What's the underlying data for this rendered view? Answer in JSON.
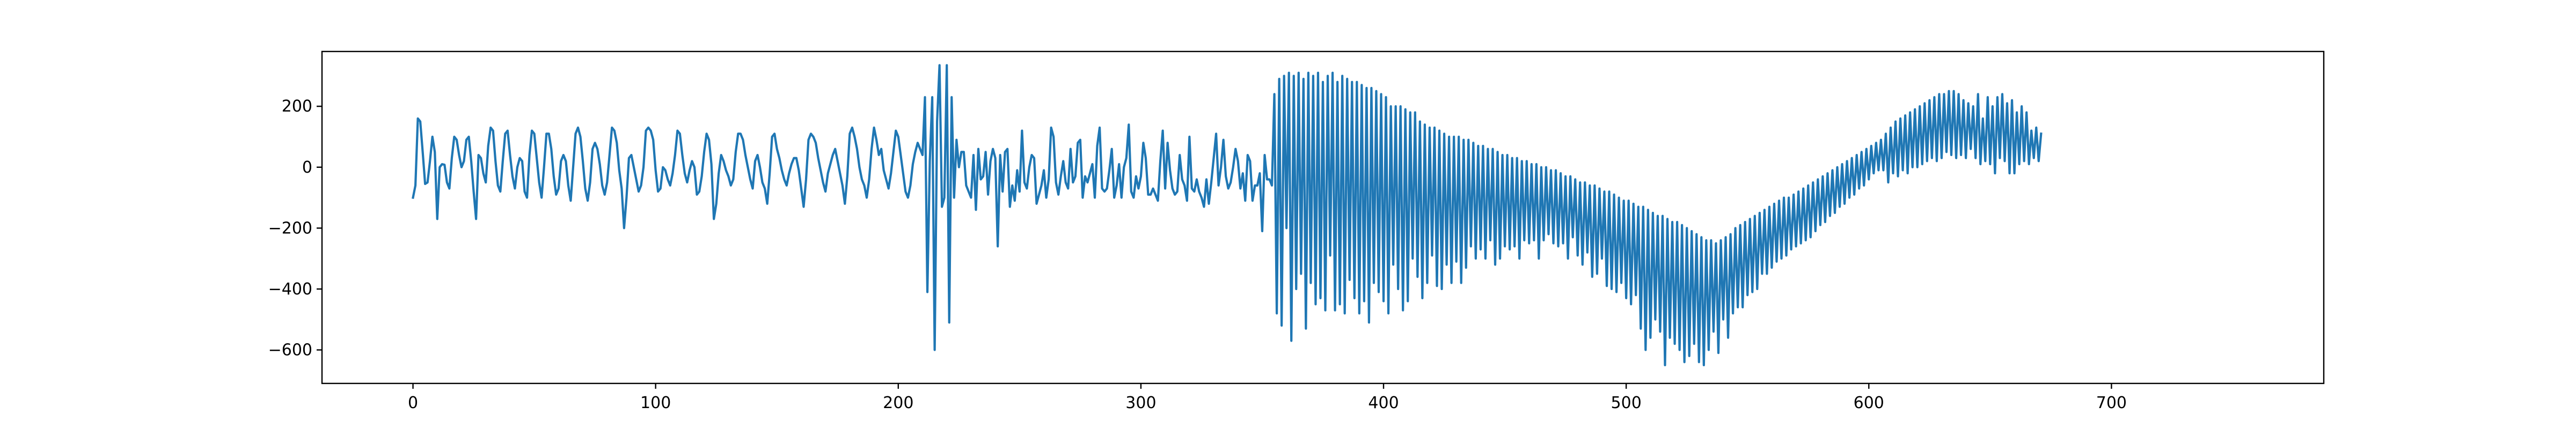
{
  "chart_data": {
    "type": "line",
    "title": "",
    "xlabel": "",
    "ylabel": "",
    "xlim": [
      -37.5,
      787.5
    ],
    "ylim": [
      -710,
      380
    ],
    "xticks": [
      0,
      100,
      200,
      300,
      400,
      500,
      600,
      700
    ],
    "yticks": [
      -600,
      -400,
      -200,
      0,
      200
    ],
    "xtick_labels": [
      "0",
      "100",
      "200",
      "300",
      "400",
      "500",
      "600",
      "700"
    ],
    "ytick_labels": [
      "−600",
      "−400",
      "−200",
      "0",
      "200"
    ],
    "grid": false,
    "legend": "none",
    "series": [
      {
        "color": "#1f77b4",
        "x_start": 0,
        "x_step": 1,
        "values": [
          -100,
          -60,
          160,
          150,
          50,
          -55,
          -50,
          20,
          100,
          50,
          -170,
          0,
          10,
          8,
          -50,
          -70,
          30,
          100,
          90,
          40,
          0,
          20,
          90,
          100,
          20,
          -80,
          -170,
          40,
          30,
          -20,
          -50,
          70,
          130,
          120,
          20,
          -60,
          -80,
          20,
          110,
          120,
          40,
          -30,
          -70,
          0,
          30,
          20,
          -80,
          -100,
          40,
          120,
          110,
          30,
          -50,
          -100,
          0,
          110,
          110,
          60,
          -30,
          -90,
          -70,
          20,
          40,
          20,
          -60,
          -110,
          0,
          110,
          130,
          100,
          20,
          -70,
          -110,
          -50,
          60,
          80,
          60,
          10,
          -60,
          -90,
          -50,
          40,
          130,
          120,
          80,
          -10,
          -70,
          -200,
          -100,
          30,
          40,
          0,
          -40,
          -80,
          -60,
          0,
          120,
          130,
          120,
          90,
          -10,
          -80,
          -70,
          0,
          -10,
          -40,
          -60,
          -20,
          40,
          120,
          110,
          40,
          -20,
          -50,
          -10,
          20,
          0,
          -90,
          -80,
          -30,
          50,
          110,
          90,
          10,
          -170,
          -120,
          -20,
          40,
          20,
          -10,
          -30,
          -60,
          -40,
          50,
          110,
          110,
          90,
          40,
          0,
          -40,
          -70,
          20,
          40,
          0,
          -50,
          -70,
          -120,
          -20,
          100,
          110,
          60,
          30,
          -10,
          -40,
          -60,
          -20,
          10,
          30,
          30,
          -10,
          -70,
          -130,
          -40,
          90,
          110,
          100,
          80,
          30,
          -10,
          -50,
          -80,
          -20,
          10,
          40,
          60,
          20,
          -20,
          -60,
          -120,
          -30,
          110,
          130,
          100,
          60,
          0,
          -40,
          -60,
          -100,
          -40,
          60,
          130,
          90,
          40,
          60,
          -10,
          -40,
          -70,
          -20,
          50,
          120,
          100,
          40,
          -20,
          -80,
          -100,
          -60,
          10,
          50,
          80,
          60,
          40,
          230,
          -410,
          20,
          230,
          -600,
          150,
          335,
          -130,
          -100,
          335,
          -510,
          230,
          -100,
          90,
          0,
          50,
          50,
          -60,
          -80,
          -100,
          40,
          -140,
          60,
          -40,
          -30,
          50,
          -90,
          20,
          60,
          30,
          -260,
          40,
          -80,
          50,
          60,
          -130,
          -60,
          -110,
          -10,
          -80,
          120,
          -50,
          -70,
          0,
          40,
          30,
          -120,
          -90,
          -60,
          -10,
          -100,
          -40,
          130,
          100,
          -50,
          -90,
          -30,
          20,
          -50,
          -70,
          60,
          -50,
          -30,
          80,
          90,
          -100,
          -30,
          -50,
          -20,
          10,
          -100,
          70,
          130,
          -70,
          -80,
          -70,
          -10,
          60,
          -100,
          -60,
          10,
          -100,
          0,
          30,
          140,
          -80,
          -100,
          -30,
          -70,
          -30,
          80,
          30,
          -90,
          -90,
          -70,
          -90,
          -110,
          20,
          120,
          -70,
          80,
          -10,
          -70,
          -90,
          -80,
          40,
          -40,
          -60,
          -110,
          100,
          -70,
          -80,
          -40,
          -80,
          -100,
          -130,
          -40,
          -120,
          -50,
          30,
          110,
          -60,
          0,
          90,
          -30,
          -70,
          -50,
          0,
          60,
          20,
          -70,
          -20,
          -110,
          40,
          20,
          -110,
          -60,
          -60,
          -20,
          -210,
          40,
          -40,
          -40,
          -60,
          240,
          -480,
          290,
          -520,
          300,
          -200,
          310,
          -570,
          300,
          -400,
          310,
          -350,
          290,
          -530,
          310,
          -380,
          300,
          -450,
          310,
          -430,
          280,
          -470,
          300,
          -290,
          310,
          -470,
          280,
          -450,
          300,
          -480,
          290,
          -370,
          280,
          -430,
          280,
          -480,
          270,
          -440,
          260,
          -510,
          260,
          -380,
          250,
          -410,
          240,
          -440,
          230,
          -480,
          200,
          -320,
          200,
          -400,
          200,
          -470,
          190,
          -440,
          180,
          -300,
          180,
          -360,
          150,
          -430,
          140,
          -380,
          130,
          -290,
          130,
          -390,
          120,
          -400,
          110,
          -320,
          100,
          -380,
          100,
          -310,
          100,
          -380,
          90,
          -330,
          90,
          -260,
          80,
          -300,
          70,
          -270,
          70,
          -300,
          60,
          -240,
          60,
          -320,
          50,
          -300,
          40,
          -260,
          40,
          -270,
          30,
          -260,
          30,
          -300,
          20,
          -240,
          20,
          -250,
          10,
          -240,
          10,
          -300,
          0,
          -240,
          0,
          -220,
          -10,
          -250,
          -10,
          -260,
          -20,
          -250,
          -30,
          -300,
          -30,
          -230,
          -40,
          -290,
          -50,
          -320,
          -50,
          -280,
          -60,
          -360,
          -60,
          -350,
          -70,
          -300,
          -80,
          -390,
          -80,
          -400,
          -90,
          -410,
          -100,
          -380,
          -110,
          -430,
          -110,
          -450,
          -120,
          -420,
          -130,
          -530,
          -130,
          -600,
          -140,
          -560,
          -150,
          -500,
          -160,
          -540,
          -160,
          -650,
          -170,
          -560,
          -180,
          -580,
          -180,
          -600,
          -190,
          -640,
          -200,
          -620,
          -210,
          -580,
          -220,
          -640,
          -230,
          -650,
          -240,
          -600,
          -240,
          -540,
          -250,
          -610,
          -240,
          -500,
          -230,
          -560,
          -220,
          -480,
          -200,
          -460,
          -190,
          -460,
          -180,
          -420,
          -170,
          -410,
          -160,
          -400,
          -150,
          -350,
          -140,
          -350,
          -130,
          -330,
          -120,
          -310,
          -110,
          -300,
          -100,
          -290,
          -100,
          -270,
          -90,
          -260,
          -80,
          -250,
          -70,
          -240,
          -60,
          -230,
          -50,
          -210,
          -40,
          -190,
          -30,
          -180,
          -20,
          -160,
          -10,
          -150,
          0,
          -130,
          10,
          -120,
          20,
          -100,
          30,
          -90,
          40,
          -70,
          50,
          -60,
          60,
          -40,
          70,
          -20,
          80,
          -10,
          90,
          -10,
          110,
          -50,
          130,
          -20,
          150,
          -30,
          160,
          -10,
          170,
          -20,
          180,
          0,
          190,
          0,
          200,
          10,
          210,
          20,
          220,
          30,
          230,
          20,
          240,
          30,
          240,
          50,
          250,
          40,
          250,
          30,
          240,
          40,
          220,
          30,
          210,
          60,
          200,
          30,
          240,
          10,
          160,
          20,
          230,
          10,
          200,
          -20,
          230,
          30,
          240,
          20,
          210,
          -20,
          220,
          -20,
          180,
          10,
          200,
          20,
          180,
          10,
          120,
          30,
          130,
          20,
          110
        ]
      }
    ]
  }
}
